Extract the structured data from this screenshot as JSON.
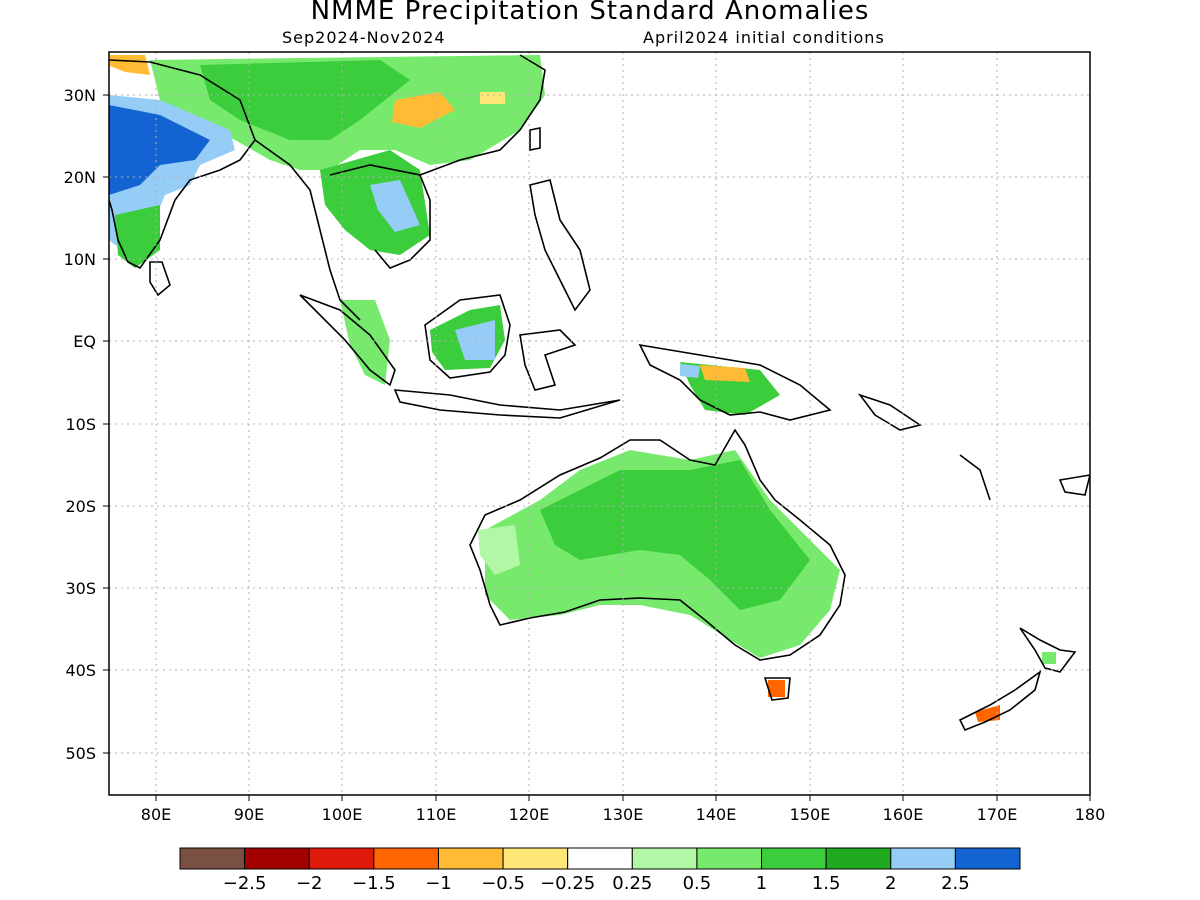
{
  "title": "NMME Precipitation Standard Anomalies",
  "subtitle_left": "Sep2024-Nov2024",
  "subtitle_right": "April2024 initial conditions",
  "lat_labels": [
    "30N",
    "20N",
    "10N",
    "EQ",
    "10S",
    "20S",
    "30S",
    "40S",
    "50S"
  ],
  "lon_labels": [
    "80E",
    "90E",
    "100E",
    "110E",
    "120E",
    "130E",
    "140E",
    "150E",
    "160E",
    "170E",
    "180"
  ],
  "colorbar": {
    "colors": [
      "#7a5043",
      "#a30000",
      "#e01a0a",
      "#ff6600",
      "#ffbb33",
      "#ffe777",
      "#ffffff",
      "#b2f7a5",
      "#77ea6d",
      "#3bcd3b",
      "#1faa1f",
      "#96cdf7",
      "#1463d2"
    ],
    "labels": [
      "-2.5",
      "-2",
      "-1.5",
      "-1",
      "-0.5",
      "-0.25",
      "0.25",
      "0.5",
      "1",
      "1.5",
      "2",
      "2.5"
    ]
  },
  "map_extent": {
    "lon_min": 75,
    "lon_max": 180,
    "lat_min": -55,
    "lat_max": 35
  }
}
